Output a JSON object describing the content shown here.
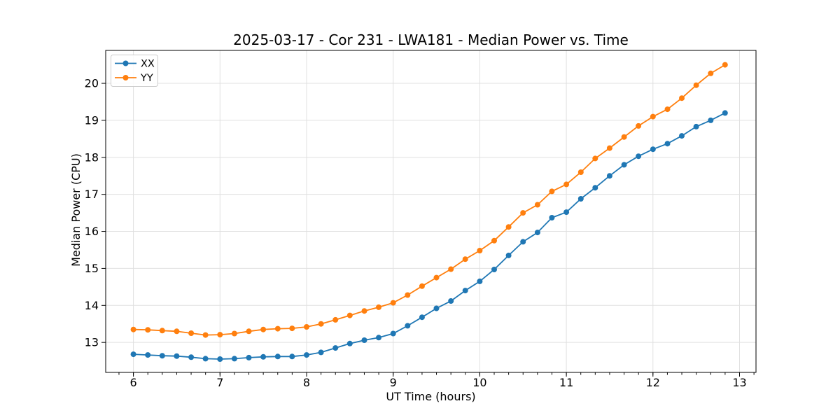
{
  "chart_data": {
    "type": "line",
    "title": "2025-03-17 - Cor 231 - LWA181 - Median Power vs. Time",
    "xlabel": "UT Time (hours)",
    "ylabel": "Median Power (CPU)",
    "xlim": [
      5.68,
      13.19
    ],
    "ylim": [
      12.19,
      20.89
    ],
    "x_ticks": [
      6,
      7,
      8,
      9,
      10,
      11,
      12,
      13
    ],
    "y_ticks": [
      13,
      14,
      15,
      16,
      17,
      18,
      19,
      20
    ],
    "x_minor_tick_step": 0.166667,
    "grid": true,
    "legend_position": "upper-left",
    "background": "#ffffff",
    "x": [
      6.0,
      6.167,
      6.333,
      6.5,
      6.667,
      6.833,
      7.0,
      7.167,
      7.333,
      7.5,
      7.667,
      7.833,
      8.0,
      8.167,
      8.333,
      8.5,
      8.667,
      8.833,
      9.0,
      9.167,
      9.333,
      9.5,
      9.667,
      9.833,
      10.0,
      10.167,
      10.333,
      10.5,
      10.667,
      10.833,
      11.0,
      11.167,
      11.333,
      11.5,
      11.667,
      11.833,
      12.0,
      12.167,
      12.333,
      12.5,
      12.667,
      12.833
    ],
    "series": [
      {
        "name": "XX",
        "color": "#1f77b4",
        "values": [
          12.68,
          12.66,
          12.64,
          12.63,
          12.6,
          12.56,
          12.55,
          12.56,
          12.59,
          12.61,
          12.62,
          12.62,
          12.66,
          12.73,
          12.85,
          12.97,
          13.06,
          13.13,
          13.24,
          13.45,
          13.68,
          13.92,
          14.12,
          14.4,
          14.65,
          14.97,
          15.35,
          15.72,
          15.97,
          16.37,
          16.52,
          16.88,
          17.18,
          17.5,
          17.8,
          18.03,
          18.22,
          18.37,
          18.58,
          18.83,
          19.0,
          19.2
        ]
      },
      {
        "name": "YY",
        "color": "#ff7f0e",
        "values": [
          13.35,
          13.34,
          13.32,
          13.3,
          13.25,
          13.2,
          13.21,
          13.24,
          13.3,
          13.35,
          13.37,
          13.38,
          13.42,
          13.5,
          13.61,
          13.73,
          13.85,
          13.95,
          14.07,
          14.28,
          14.52,
          14.75,
          14.98,
          15.25,
          15.48,
          15.75,
          16.12,
          16.5,
          16.72,
          17.08,
          17.27,
          17.6,
          17.97,
          18.25,
          18.55,
          18.85,
          19.1,
          19.3,
          19.6,
          19.95,
          20.27,
          20.5
        ]
      }
    ]
  }
}
